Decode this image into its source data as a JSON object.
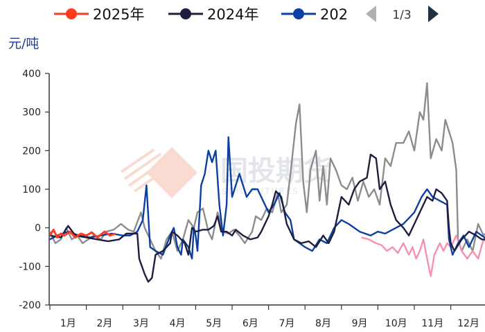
{
  "legend": {
    "items": [
      {
        "label": "2025年",
        "color": "#ff3b1f"
      },
      {
        "label": "2024年",
        "color": "#1d1d3f"
      },
      {
        "label": "202",
        "color": "#0b3fa3"
      }
    ],
    "pager": "1/3"
  },
  "watermark": {
    "text": "国投期货",
    "subtext": "SDIC FUTURES"
  },
  "chart_data": {
    "type": "line",
    "unit_label": "元/吨",
    "ylim": [
      -200,
      400
    ],
    "yticks": [
      -200,
      -100,
      0,
      100,
      200,
      300,
      400
    ],
    "xlim": [
      0,
      12
    ],
    "months": [
      "1月",
      "2月",
      "3月",
      "4月",
      "5月",
      "6月",
      "7月",
      "8月",
      "9月",
      "10月",
      "11月",
      "12月"
    ],
    "grid": false,
    "legend_position": "top",
    "series": [
      {
        "name": "2025年",
        "color": "#ff3b1f",
        "points": [
          [
            0.0,
            -20
          ],
          [
            0.1,
            -5
          ],
          [
            0.2,
            -25
          ],
          [
            0.3,
            -15
          ],
          [
            0.4,
            -20
          ],
          [
            0.55,
            -10
          ],
          [
            0.7,
            -25
          ],
          [
            0.85,
            -15
          ],
          [
            1.0,
            -20
          ],
          [
            1.15,
            -12
          ],
          [
            1.3,
            -25
          ],
          [
            1.5,
            -10
          ],
          [
            1.65,
            -20
          ],
          [
            1.8,
            -15
          ]
        ]
      },
      {
        "name": "2024年",
        "color": "#1d1d3f",
        "points": [
          [
            0.0,
            -20
          ],
          [
            0.3,
            -25
          ],
          [
            0.5,
            5
          ],
          [
            0.7,
            -20
          ],
          [
            1.0,
            -25
          ],
          [
            1.3,
            -30
          ],
          [
            1.6,
            -35
          ],
          [
            1.9,
            -30
          ],
          [
            2.1,
            -15
          ],
          [
            2.4,
            -15
          ],
          [
            2.45,
            -80
          ],
          [
            2.6,
            -120
          ],
          [
            2.7,
            -140
          ],
          [
            2.8,
            -130
          ],
          [
            2.9,
            -70
          ],
          [
            3.1,
            -60
          ],
          [
            3.3,
            -40
          ],
          [
            3.35,
            -10
          ],
          [
            3.5,
            -20
          ],
          [
            3.7,
            -40
          ],
          [
            3.8,
            -70
          ],
          [
            3.9,
            0
          ],
          [
            4.0,
            -10
          ],
          [
            4.2,
            -5
          ],
          [
            4.35,
            -5
          ],
          [
            4.5,
            5
          ],
          [
            4.6,
            30
          ],
          [
            4.7,
            -10
          ],
          [
            4.85,
            -10
          ],
          [
            5.0,
            -20
          ],
          [
            5.1,
            -5
          ],
          [
            5.3,
            -20
          ],
          [
            5.5,
            -30
          ],
          [
            5.7,
            -25
          ],
          [
            5.8,
            -10
          ],
          [
            6.0,
            30
          ],
          [
            6.1,
            60
          ],
          [
            6.2,
            95
          ],
          [
            6.35,
            80
          ],
          [
            6.5,
            10
          ],
          [
            6.7,
            -30
          ],
          [
            6.9,
            -40
          ],
          [
            7.1,
            -35
          ],
          [
            7.3,
            -50
          ],
          [
            7.5,
            -20
          ],
          [
            7.65,
            -40
          ],
          [
            7.8,
            -10
          ],
          [
            8.0,
            80
          ],
          [
            8.2,
            60
          ],
          [
            8.35,
            100
          ],
          [
            8.5,
            120
          ],
          [
            8.7,
            130
          ],
          [
            8.8,
            190
          ],
          [
            8.95,
            180
          ],
          [
            9.05,
            100
          ],
          [
            9.2,
            120
          ],
          [
            9.35,
            60
          ],
          [
            9.5,
            20
          ],
          [
            9.7,
            0
          ],
          [
            9.85,
            -20
          ],
          [
            10.0,
            10
          ],
          [
            10.2,
            50
          ],
          [
            10.35,
            80
          ],
          [
            10.5,
            70
          ],
          [
            10.6,
            100
          ],
          [
            10.75,
            90
          ],
          [
            10.9,
            70
          ],
          [
            10.95,
            0
          ],
          [
            11.0,
            -40
          ],
          [
            11.1,
            -60
          ],
          [
            11.3,
            -30
          ],
          [
            11.5,
            -10
          ],
          [
            11.7,
            -20
          ],
          [
            11.85,
            -30
          ],
          [
            12.0,
            -30
          ]
        ]
      },
      {
        "name": "202",
        "color": "#0b3fa3",
        "points": [
          [
            0.0,
            -30
          ],
          [
            0.2,
            -20
          ],
          [
            0.5,
            -10
          ],
          [
            0.8,
            -20
          ],
          [
            1.1,
            -25
          ],
          [
            1.4,
            -20
          ],
          [
            1.7,
            -15
          ],
          [
            2.0,
            -20
          ],
          [
            2.2,
            -20
          ],
          [
            2.4,
            -10
          ],
          [
            2.55,
            20
          ],
          [
            2.65,
            110
          ],
          [
            2.75,
            -50
          ],
          [
            2.9,
            -60
          ],
          [
            3.1,
            -70
          ],
          [
            3.3,
            -20
          ],
          [
            3.4,
            0
          ],
          [
            3.5,
            -50
          ],
          [
            3.6,
            -70
          ],
          [
            3.65,
            -30
          ],
          [
            3.8,
            -50
          ],
          [
            3.9,
            -80
          ],
          [
            3.95,
            0
          ],
          [
            4.0,
            -20
          ],
          [
            4.05,
            -60
          ],
          [
            4.15,
            110
          ],
          [
            4.25,
            140
          ],
          [
            4.35,
            200
          ],
          [
            4.45,
            170
          ],
          [
            4.55,
            200
          ],
          [
            4.65,
            60
          ],
          [
            4.75,
            -20
          ],
          [
            4.85,
            60
          ],
          [
            4.9,
            235
          ],
          [
            5.0,
            80
          ],
          [
            5.1,
            110
          ],
          [
            5.2,
            140
          ],
          [
            5.3,
            110
          ],
          [
            5.4,
            80
          ],
          [
            5.55,
            100
          ],
          [
            5.7,
            100
          ],
          [
            5.85,
            70
          ],
          [
            6.0,
            40
          ],
          [
            6.15,
            60
          ],
          [
            6.3,
            90
          ],
          [
            6.45,
            40
          ],
          [
            6.6,
            20
          ],
          [
            6.7,
            -30
          ],
          [
            6.85,
            -40
          ],
          [
            7.0,
            -50
          ],
          [
            7.2,
            -60
          ],
          [
            7.4,
            -30
          ],
          [
            7.6,
            -40
          ],
          [
            7.8,
            0
          ],
          [
            8.0,
            20
          ],
          [
            8.2,
            10
          ],
          [
            8.5,
            -10
          ],
          [
            8.8,
            -20
          ],
          [
            9.0,
            -10
          ],
          [
            9.2,
            -15
          ],
          [
            9.4,
            -5
          ],
          [
            9.7,
            10
          ],
          [
            10.0,
            40
          ],
          [
            10.2,
            80
          ],
          [
            10.35,
            100
          ],
          [
            10.5,
            80
          ],
          [
            10.7,
            70
          ],
          [
            10.9,
            60
          ],
          [
            10.95,
            -30
          ],
          [
            11.05,
            -70
          ],
          [
            11.2,
            -40
          ],
          [
            11.35,
            -20
          ],
          [
            11.5,
            -50
          ],
          [
            11.7,
            -10
          ],
          [
            11.85,
            -20
          ],
          [
            12.0,
            -30
          ]
        ]
      },
      {
        "name": "",
        "color": "#8c8c8c",
        "points": [
          [
            0.0,
            -10
          ],
          [
            0.15,
            -40
          ],
          [
            0.3,
            -30
          ],
          [
            0.45,
            0
          ],
          [
            0.6,
            -30
          ],
          [
            0.75,
            -20
          ],
          [
            0.9,
            -40
          ],
          [
            1.05,
            -30
          ],
          [
            1.2,
            -20
          ],
          [
            1.4,
            -30
          ],
          [
            1.55,
            -10
          ],
          [
            1.75,
            -5
          ],
          [
            1.95,
            10
          ],
          [
            2.15,
            -5
          ],
          [
            2.3,
            -10
          ],
          [
            2.5,
            40
          ],
          [
            2.6,
            0
          ],
          [
            2.75,
            -30
          ],
          [
            2.9,
            -60
          ],
          [
            3.05,
            -80
          ],
          [
            3.2,
            -30
          ],
          [
            3.35,
            -10
          ],
          [
            3.5,
            -60
          ],
          [
            3.65,
            -30
          ],
          [
            3.8,
            20
          ],
          [
            3.95,
            0
          ],
          [
            4.05,
            40
          ],
          [
            4.2,
            50
          ],
          [
            4.35,
            -10
          ],
          [
            4.45,
            -30
          ],
          [
            4.6,
            40
          ],
          [
            4.75,
            -10
          ],
          [
            4.9,
            -15
          ],
          [
            5.05,
            -5
          ],
          [
            5.2,
            -20
          ],
          [
            5.35,
            -40
          ],
          [
            5.55,
            -10
          ],
          [
            5.65,
            30
          ],
          [
            5.8,
            20
          ],
          [
            5.95,
            50
          ],
          [
            6.1,
            40
          ],
          [
            6.25,
            90
          ],
          [
            6.35,
            40
          ],
          [
            6.5,
            60
          ],
          [
            6.6,
            140
          ],
          [
            6.75,
            270
          ],
          [
            6.85,
            320
          ],
          [
            6.95,
            120
          ],
          [
            7.05,
            40
          ],
          [
            7.15,
            150
          ],
          [
            7.3,
            200
          ],
          [
            7.4,
            70
          ],
          [
            7.5,
            160
          ],
          [
            7.6,
            60
          ],
          [
            7.7,
            180
          ],
          [
            7.85,
            150
          ],
          [
            8.0,
            110
          ],
          [
            8.15,
            100
          ],
          [
            8.3,
            130
          ],
          [
            8.45,
            70
          ],
          [
            8.6,
            120
          ],
          [
            8.75,
            80
          ],
          [
            8.9,
            100
          ],
          [
            9.05,
            60
          ],
          [
            9.2,
            180
          ],
          [
            9.35,
            160
          ],
          [
            9.5,
            220
          ],
          [
            9.7,
            220
          ],
          [
            9.85,
            250
          ],
          [
            10.0,
            200
          ],
          [
            10.15,
            300
          ],
          [
            10.25,
            280
          ],
          [
            10.35,
            375
          ],
          [
            10.45,
            180
          ],
          [
            10.6,
            230
          ],
          [
            10.75,
            200
          ],
          [
            10.85,
            280
          ],
          [
            10.95,
            250
          ],
          [
            11.05,
            220
          ],
          [
            11.15,
            150
          ],
          [
            11.2,
            -30
          ],
          [
            11.3,
            -60
          ],
          [
            11.45,
            -30
          ],
          [
            11.6,
            -60
          ],
          [
            11.75,
            10
          ],
          [
            11.9,
            -20
          ],
          [
            12.0,
            -10
          ]
        ]
      },
      {
        "name": "",
        "color": "#f78fb0",
        "points": [
          [
            8.55,
            -25
          ],
          [
            8.75,
            -30
          ],
          [
            8.95,
            -40
          ],
          [
            9.1,
            -45
          ],
          [
            9.25,
            -60
          ],
          [
            9.4,
            -50
          ],
          [
            9.55,
            -65
          ],
          [
            9.7,
            -40
          ],
          [
            9.85,
            -70
          ],
          [
            9.95,
            -50
          ],
          [
            10.05,
            -80
          ],
          [
            10.15,
            -60
          ],
          [
            10.25,
            -30
          ],
          [
            10.35,
            -80
          ],
          [
            10.45,
            -125
          ],
          [
            10.55,
            -70
          ],
          [
            10.7,
            -40
          ],
          [
            10.8,
            -60
          ],
          [
            10.9,
            -40
          ],
          [
            11.0,
            -50
          ],
          [
            11.15,
            -20
          ],
          [
            11.3,
            -60
          ],
          [
            11.45,
            -80
          ],
          [
            11.6,
            -60
          ],
          [
            11.75,
            -80
          ],
          [
            11.9,
            -30
          ],
          [
            12.0,
            -40
          ]
        ]
      }
    ]
  }
}
